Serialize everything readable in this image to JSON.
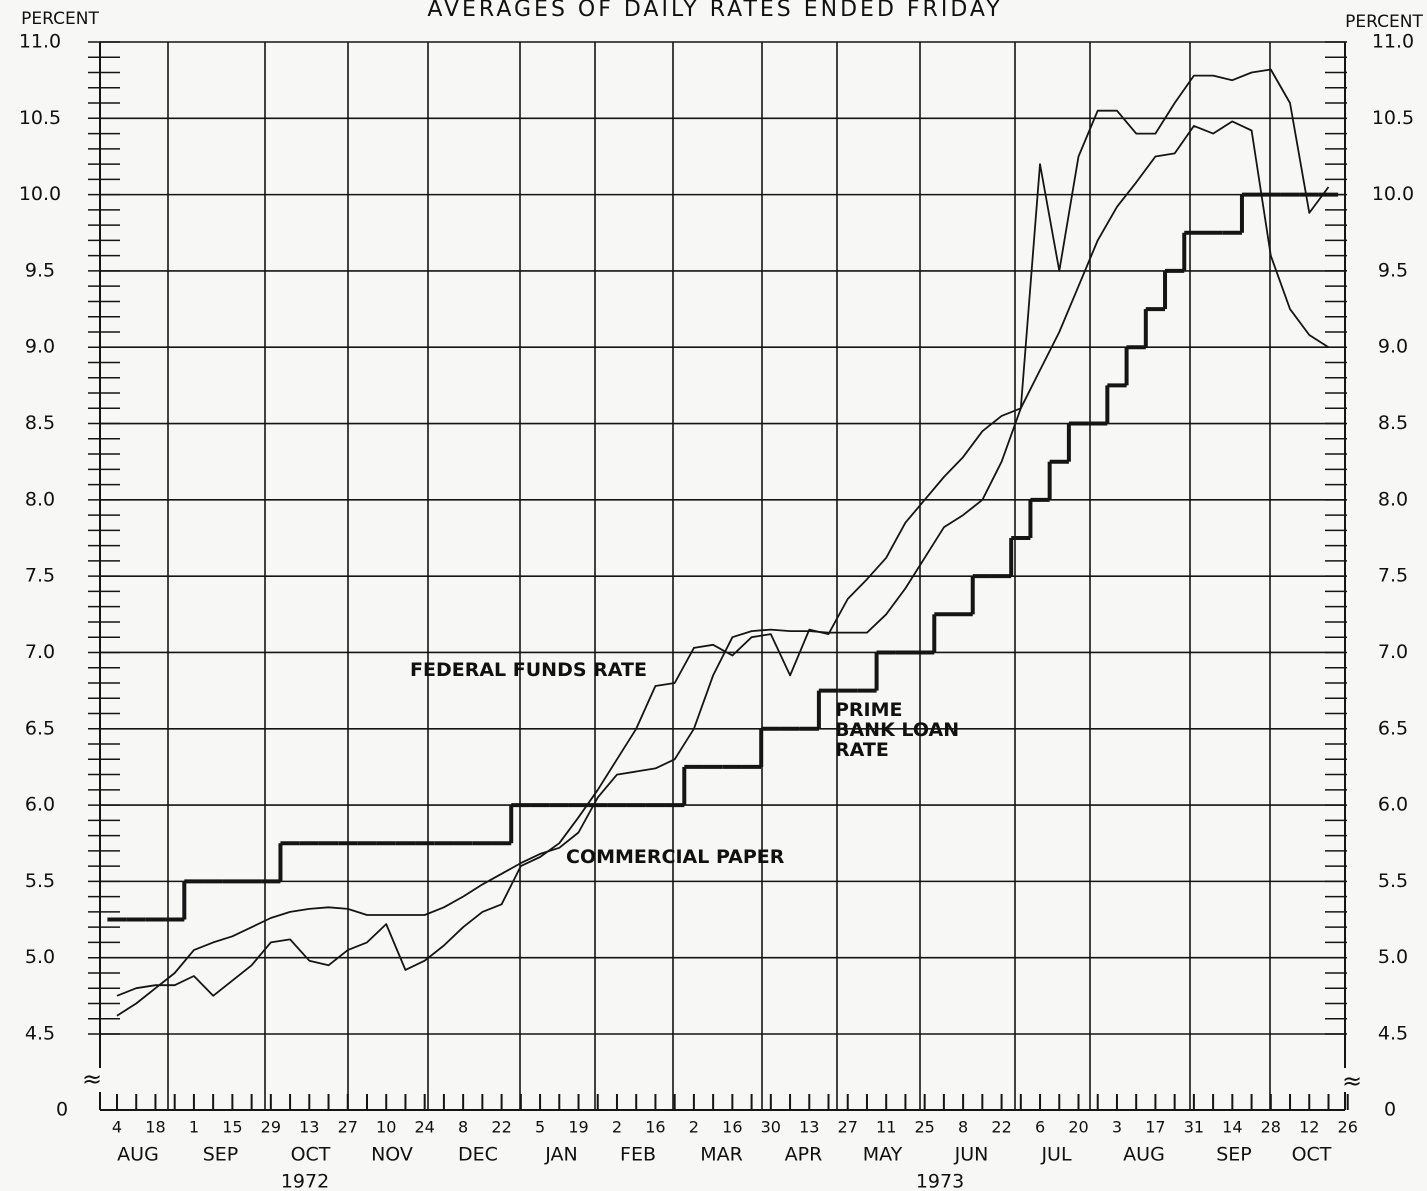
{
  "chart_data": {
    "type": "line",
    "title": "AVERAGES OF DAILY RATES ENDED FRIDAY",
    "y_axis_label": "PERCENT",
    "categories": [
      "4",
      null,
      "18",
      null,
      "1",
      null,
      "15",
      null,
      "29",
      null,
      "13",
      null,
      "27",
      null,
      "10",
      null,
      "24",
      null,
      "8",
      null,
      "22",
      null,
      "5",
      null,
      "19",
      null,
      "2",
      null,
      "16",
      null,
      "2",
      null,
      "16",
      null,
      "30",
      null,
      "13",
      null,
      "27",
      null,
      "11",
      null,
      "25",
      null,
      "8",
      null,
      "22",
      null,
      "6",
      null,
      "20",
      null,
      "3",
      null,
      "17",
      null,
      "31",
      null,
      "14",
      null,
      "28",
      null,
      "12",
      null,
      "26"
    ],
    "months": [
      "AUG",
      "SEP",
      "OCT",
      "NOV",
      "DEC",
      "JAN",
      "FEB",
      "MAR",
      "APR",
      "MAY",
      "JUN",
      "JUL",
      "AUG",
      "SEP",
      "OCT"
    ],
    "years": [
      "1972",
      "1973"
    ],
    "ylim": [
      4.5,
      11.0
    ],
    "yticks": [
      4.5,
      {
        "value": 5,
        "label": "5.0"
      },
      5.5,
      {
        "value": 6,
        "label": "6.0"
      },
      6.5,
      {
        "value": 7,
        "label": "7.0"
      },
      7.5,
      {
        "value": 8,
        "label": "8.0"
      },
      8.5,
      {
        "value": 9,
        "label": "9.0"
      },
      9.5,
      {
        "value": 10,
        "label": "10.0"
      },
      10.5,
      {
        "value": 11,
        "label": "11.0"
      }
    ],
    "zero_tick": 0,
    "grid": true,
    "series": [
      {
        "name": "FEDERAL FUNDS RATE",
        "color": "#151515",
        "step": false,
        "values": [
          4.75,
          4.8,
          4.82,
          4.82,
          4.88,
          4.75,
          4.85,
          4.95,
          5.1,
          5.12,
          4.98,
          4.95,
          5.05,
          5.1,
          5.22,
          4.92,
          4.98,
          5.08,
          5.2,
          5.3,
          5.35,
          5.6,
          5.66,
          5.75,
          5.92,
          6.1,
          6.3,
          6.5,
          6.78,
          6.8,
          7.03,
          7.05,
          6.98,
          7.1,
          7.12,
          6.85,
          7.15,
          7.12,
          7.35,
          7.48,
          7.62,
          7.85,
          8.0,
          8.15,
          8.28,
          8.45,
          8.55,
          8.6,
          10.2,
          9.5,
          10.25,
          10.55,
          10.55,
          10.4,
          10.4,
          10.6,
          10.78,
          10.78,
          10.75,
          10.8,
          10.82,
          10.6,
          9.88,
          10.05,
          null
        ]
      },
      {
        "name": "PRIME BANK LOAN RATE",
        "color": "#151515",
        "step": true,
        "values": [
          5.25,
          5.25,
          5.25,
          5.25,
          5.5,
          5.5,
          5.5,
          5.5,
          5.5,
          5.75,
          5.75,
          5.75,
          5.75,
          5.75,
          5.75,
          5.75,
          5.75,
          5.75,
          5.75,
          5.75,
          5.75,
          6.0,
          6.0,
          6.0,
          6.0,
          6.0,
          6.0,
          6.0,
          6.0,
          6.0,
          6.25,
          6.25,
          6.25,
          6.25,
          6.5,
          6.5,
          6.5,
          6.75,
          6.75,
          6.75,
          7.0,
          7.0,
          7.0,
          7.25,
          7.25,
          7.5,
          7.5,
          7.75,
          8.0,
          8.25,
          8.5,
          8.5,
          8.75,
          9.0,
          9.25,
          9.5,
          9.75,
          9.75,
          9.75,
          10.0,
          10.0,
          10.0,
          10.0,
          10.0,
          null
        ]
      },
      {
        "name": "COMMERCIAL PAPER",
        "color": "#151515",
        "step": false,
        "values": [
          4.62,
          4.7,
          4.8,
          4.9,
          5.05,
          5.1,
          5.14,
          5.2,
          5.26,
          5.3,
          5.32,
          5.33,
          5.32,
          5.28,
          5.28,
          5.28,
          5.28,
          5.33,
          5.4,
          5.48,
          5.55,
          5.62,
          5.68,
          5.72,
          5.82,
          6.05,
          6.2,
          6.22,
          6.24,
          6.3,
          6.5,
          6.85,
          7.1,
          7.14,
          7.15,
          7.14,
          7.14,
          7.13,
          7.13,
          7.13,
          7.25,
          7.42,
          7.62,
          7.82,
          7.9,
          8.0,
          8.25,
          8.6,
          8.85,
          9.1,
          9.4,
          9.7,
          9.92,
          10.08,
          10.25,
          10.27,
          10.45,
          10.4,
          10.48,
          10.42,
          9.6,
          9.25,
          9.08,
          9.0,
          null
        ]
      }
    ]
  }
}
